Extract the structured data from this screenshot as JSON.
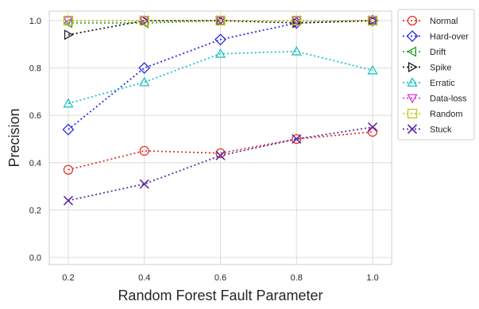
{
  "chart_data": {
    "type": "line",
    "title": "",
    "xlabel": "Random Forest Fault Parameter",
    "ylabel": "Precision",
    "x": [
      0.2,
      0.4,
      0.6,
      0.8,
      1.0
    ],
    "xticks": [
      "0.2",
      "0.4",
      "0.6",
      "0.8",
      "1.0"
    ],
    "yticks": [
      "0.0",
      "0.2",
      "0.4",
      "0.6",
      "0.8",
      "1.0"
    ],
    "xlim": [
      0.15,
      1.05
    ],
    "ylim": [
      -0.03,
      1.04
    ],
    "grid": true,
    "legend_position": "outside-right",
    "series": [
      {
        "name": "Normal",
        "color": "#e8332a",
        "marker": "circle",
        "values": [
          0.37,
          0.45,
          0.44,
          0.5,
          0.53
        ]
      },
      {
        "name": "Hard-over",
        "color": "#2a2aea",
        "marker": "diamond",
        "values": [
          0.54,
          0.8,
          0.92,
          0.99,
          1.0
        ]
      },
      {
        "name": "Drift",
        "color": "#2ca02c",
        "marker": "triangle-left",
        "values": [
          0.99,
          0.99,
          1.0,
          1.0,
          1.0
        ]
      },
      {
        "name": "Spike",
        "color": "#222222",
        "marker": "triangle-right",
        "values": [
          0.94,
          1.0,
          1.0,
          0.99,
          1.0
        ]
      },
      {
        "name": "Erratic",
        "color": "#1ec4c4",
        "marker": "triangle-up",
        "values": [
          0.65,
          0.74,
          0.86,
          0.87,
          0.79
        ]
      },
      {
        "name": "Data-loss",
        "color": "#d63ad6",
        "marker": "triangle-down",
        "values": [
          1.0,
          1.0,
          1.0,
          1.0,
          1.0
        ]
      },
      {
        "name": "Random",
        "color": "#c6c61a",
        "marker": "square",
        "values": [
          1.0,
          1.0,
          1.0,
          1.0,
          1.0
        ]
      },
      {
        "name": "Stuck",
        "color": "#5a2ea6",
        "marker": "x",
        "values": [
          0.24,
          0.31,
          0.43,
          0.5,
          0.55
        ]
      }
    ]
  }
}
